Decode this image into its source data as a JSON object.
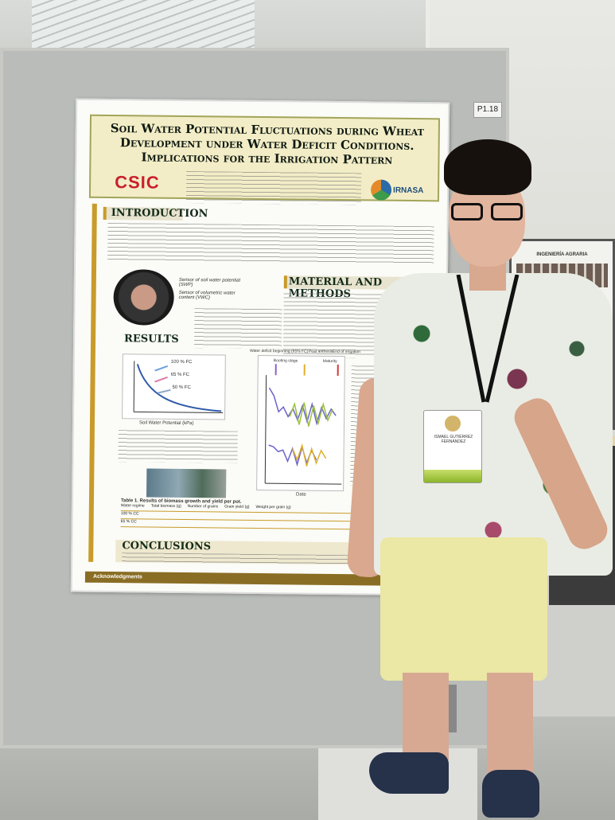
{
  "scene": {
    "description_labels": {
      "board_tag": "P1.18"
    }
  },
  "poster": {
    "title": "Soil Water Potential Fluctuations during Wheat Development under Water Deficit Conditions. Implications for the Irrigation Pattern",
    "org_left": "CSIC",
    "org_right": "IRNASA",
    "sections": {
      "introduction": "INTRODUCTION",
      "methods": "MATERIAL AND METHODS",
      "results": "RESULTS",
      "conclusions": "CONCLUSIONS",
      "acknowledgments": "Acknowledgments"
    },
    "sensor_labels": {
      "swp": "Sensor of soil water potential (SWP)",
      "vwc": "Sensor of volumetric water content (VWC)"
    },
    "chart_left": {
      "series_labels": [
        "100 % FC",
        "65 % FC",
        "50 % FC"
      ],
      "xlabel": "Soil Water Potential (kPa)"
    },
    "chart_right": {
      "annotations": [
        "Water deficit beginning (65% FC)",
        "Peat anthesis",
        "End of irrigation",
        "Booting stage",
        "Maturity"
      ],
      "xlabel": "Date"
    },
    "table": {
      "caption": "Table 1. Results of biomass growth and yield per pot.",
      "headers": [
        "Water regime",
        "Total biomass (g)",
        "Number of grains",
        "Grain yield (g)",
        "Weight per grain (g)"
      ],
      "rows": [
        [
          "100 % CC"
        ],
        [
          "65 % CC"
        ]
      ]
    }
  },
  "badge": {
    "name_line": "ISMAEL GUTIÉRREZ FERNÁNDEZ"
  },
  "side_poster": {
    "header": "INGENIERÍA AGRARIA"
  }
}
